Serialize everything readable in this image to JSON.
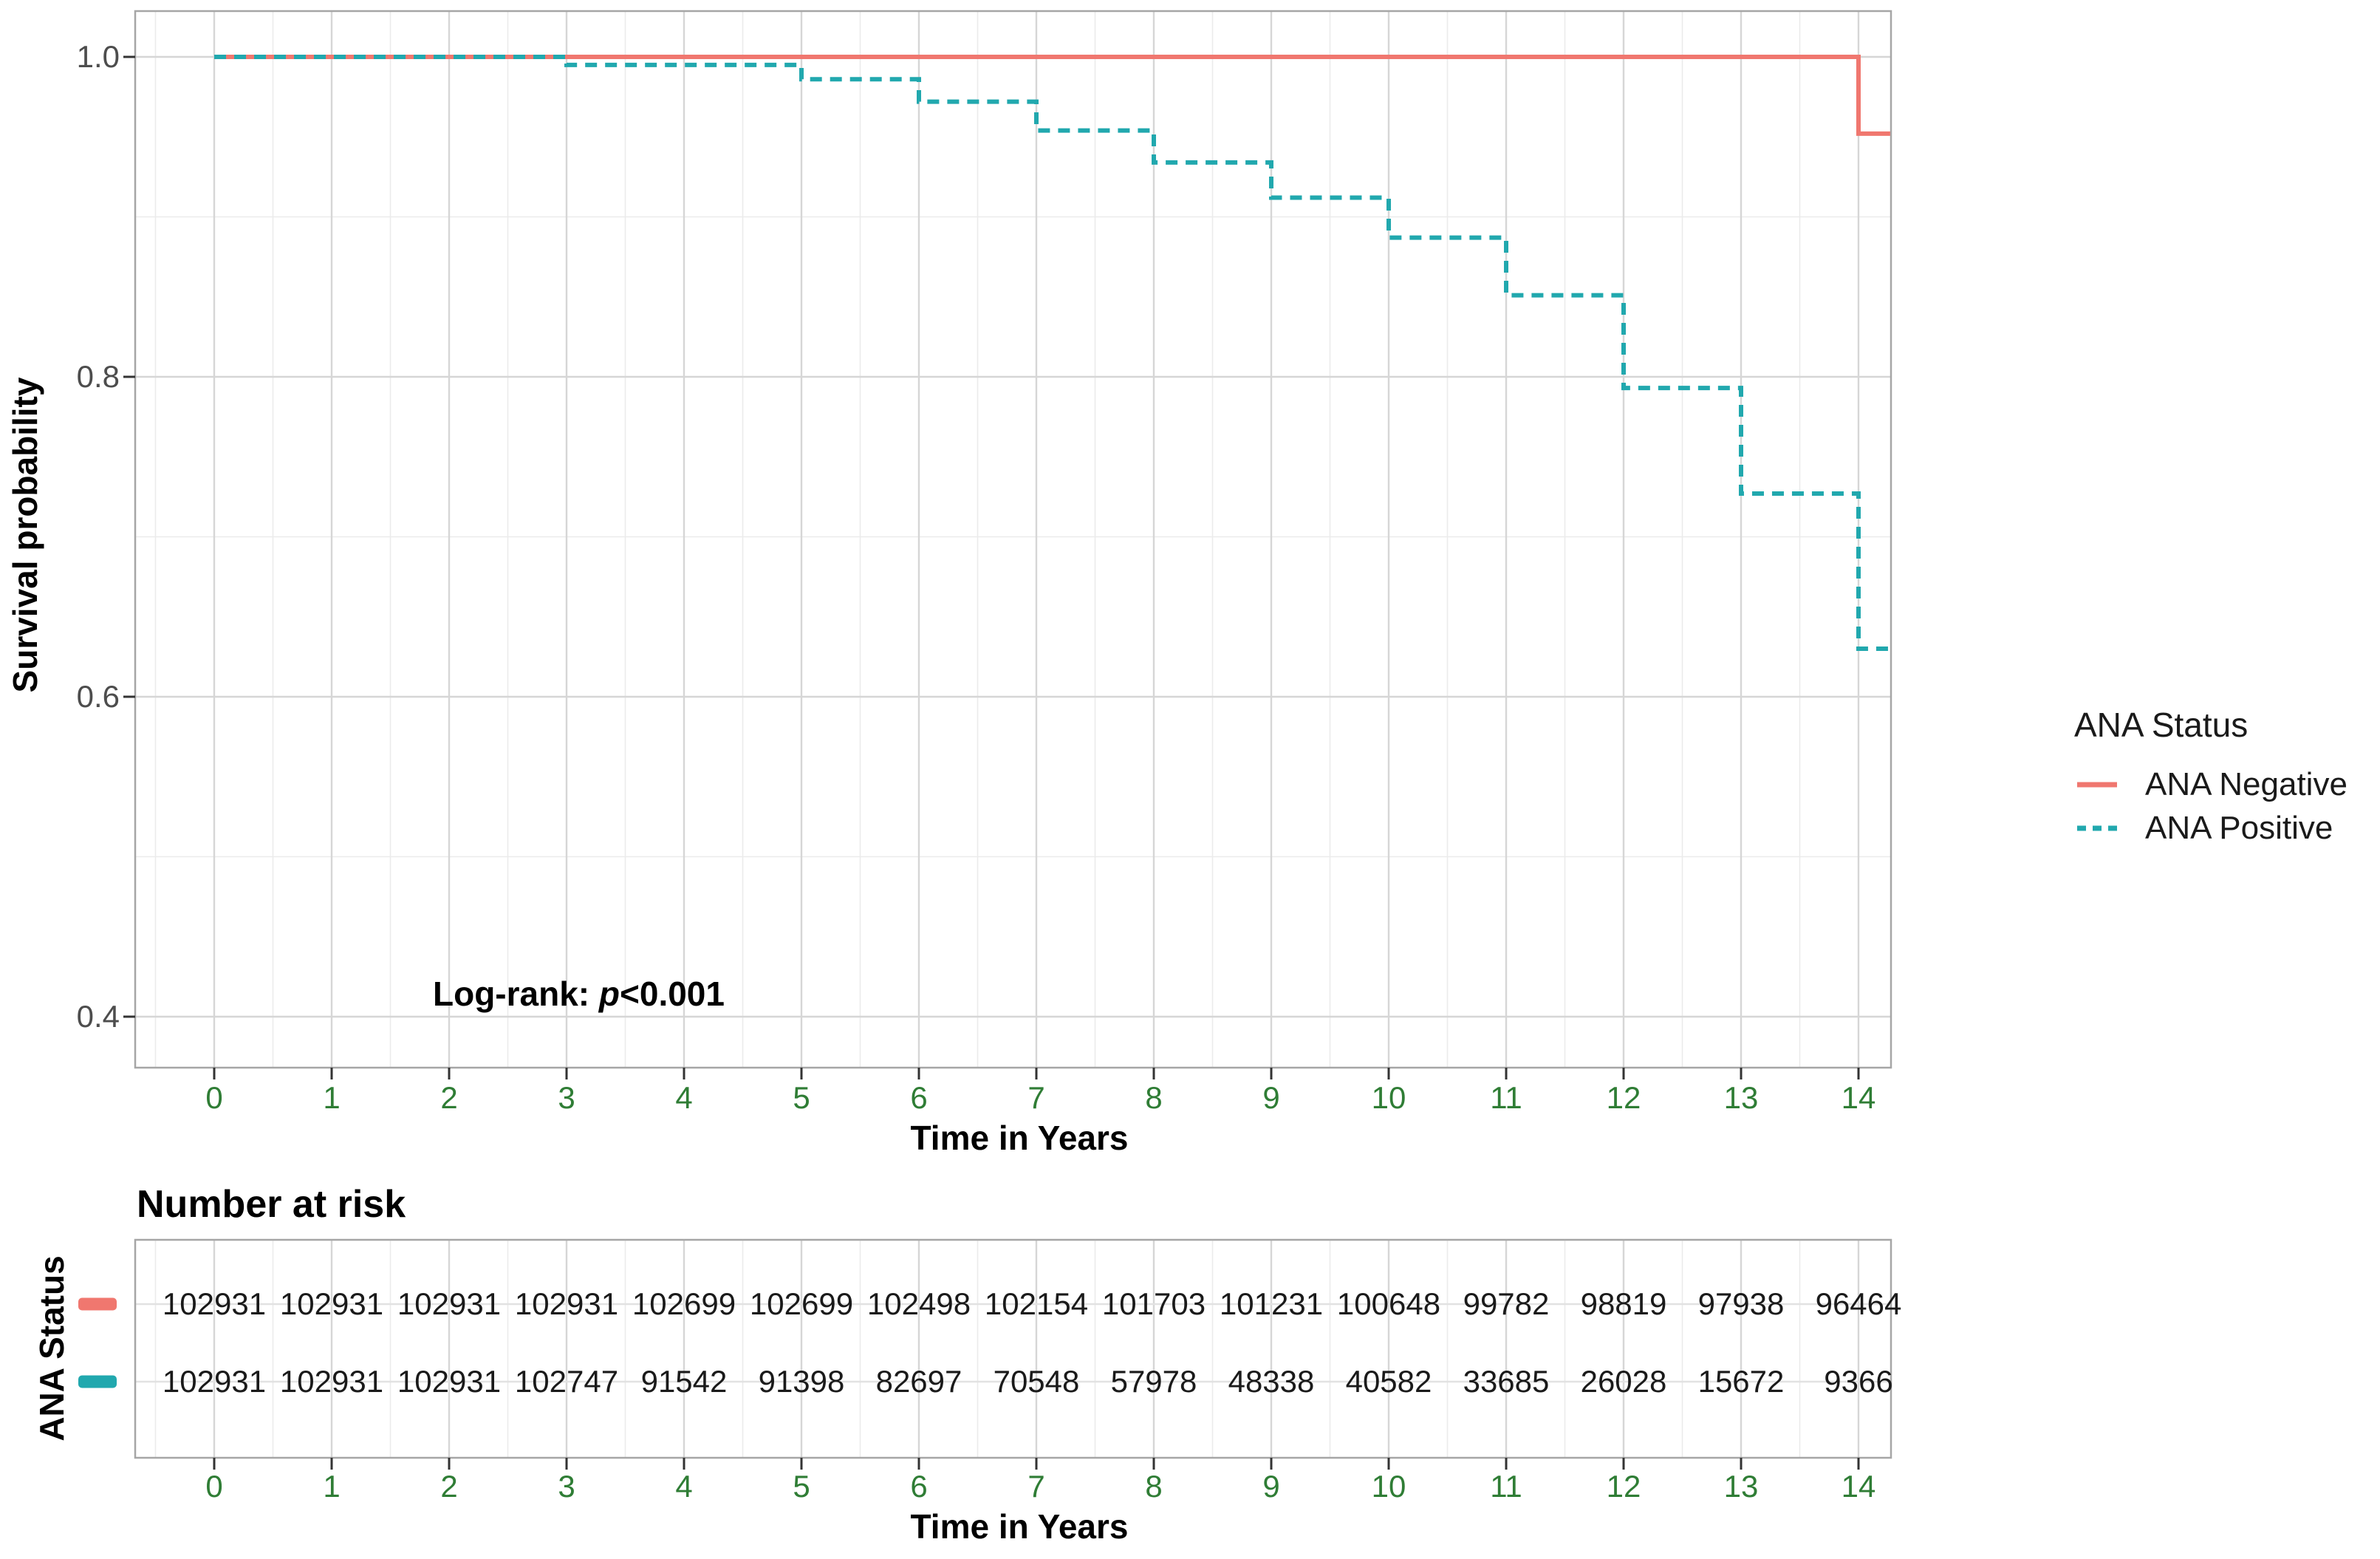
{
  "chart": {
    "ylabel": "Survival probability",
    "xlabel": "Time in Years",
    "annotation_parts": {
      "prefix": "Log-rank: ",
      "italic": "p",
      "suffix": "<0.001"
    }
  },
  "legend": {
    "title": "ANA Status"
  },
  "colors": {
    "ana_negative": "#F0776F",
    "ana_positive": "#21A8AE",
    "x_tick_text": "#2F7D35",
    "y_tick_text": "#4D4D4D",
    "major_grid": "#D6D6D6",
    "minor_grid": "#EBEBEB",
    "panel_border": "#A6A6A6",
    "tick_mark": "#333333",
    "row_gridline": "#E2E2E2"
  },
  "chart_data": {
    "type": "line",
    "variant": "kaplan_meier_step",
    "title": "",
    "xlabel": "Time in Years",
    "ylabel": "Survival probability",
    "annotation": "Log-rank: p<0.001",
    "legend_title": "ANA Status",
    "legend_position": "right",
    "grid": {
      "major": true,
      "minor": true
    },
    "xlim": [
      -0.67,
      14.27
    ],
    "ylim": [
      0.368,
      1.028
    ],
    "x_ticks": [
      0,
      1,
      2,
      3,
      4,
      5,
      6,
      7,
      8,
      9,
      10,
      11,
      12,
      13,
      14
    ],
    "y_ticks": [
      1.0,
      0.8,
      0.6,
      0.4
    ],
    "y_tick_labels": [
      "1.0",
      "0.8",
      "0.6",
      "0.4"
    ],
    "series": [
      {
        "name": "ANA Negative",
        "color": "#F0776F",
        "line_style": "solid",
        "step_times": [
          0,
          14
        ],
        "step_survival": [
          1.0,
          0.952
        ],
        "end_time": 14.27
      },
      {
        "name": "ANA Positive",
        "color": "#21A8AE",
        "line_style": "dashed",
        "step_times": [
          0,
          3,
          5,
          6,
          7,
          8,
          9,
          10,
          11,
          12,
          13,
          14
        ],
        "step_survival": [
          1.0,
          0.995,
          0.986,
          0.972,
          0.954,
          0.934,
          0.912,
          0.887,
          0.851,
          0.793,
          0.727,
          0.63
        ],
        "end_time": 14.27
      }
    ],
    "number_at_risk": {
      "title": "Number at risk",
      "ylabel": "ANA Status",
      "xlabel": "Time in Years",
      "times": [
        0,
        1,
        2,
        3,
        4,
        5,
        6,
        7,
        8,
        9,
        10,
        11,
        12,
        13,
        14
      ],
      "rows": [
        {
          "name": "ANA Negative",
          "color": "#F0776F",
          "values": [
            102931,
            102931,
            102931,
            102931,
            102699,
            102699,
            102498,
            102154,
            101703,
            101231,
            100648,
            99782,
            98819,
            97938,
            96464
          ]
        },
        {
          "name": "ANA Positive",
          "color": "#21A8AE",
          "values": [
            102931,
            102931,
            102931,
            102747,
            91542,
            91398,
            82697,
            70548,
            57978,
            48338,
            40582,
            33685,
            26028,
            15672,
            9366
          ]
        }
      ]
    }
  }
}
